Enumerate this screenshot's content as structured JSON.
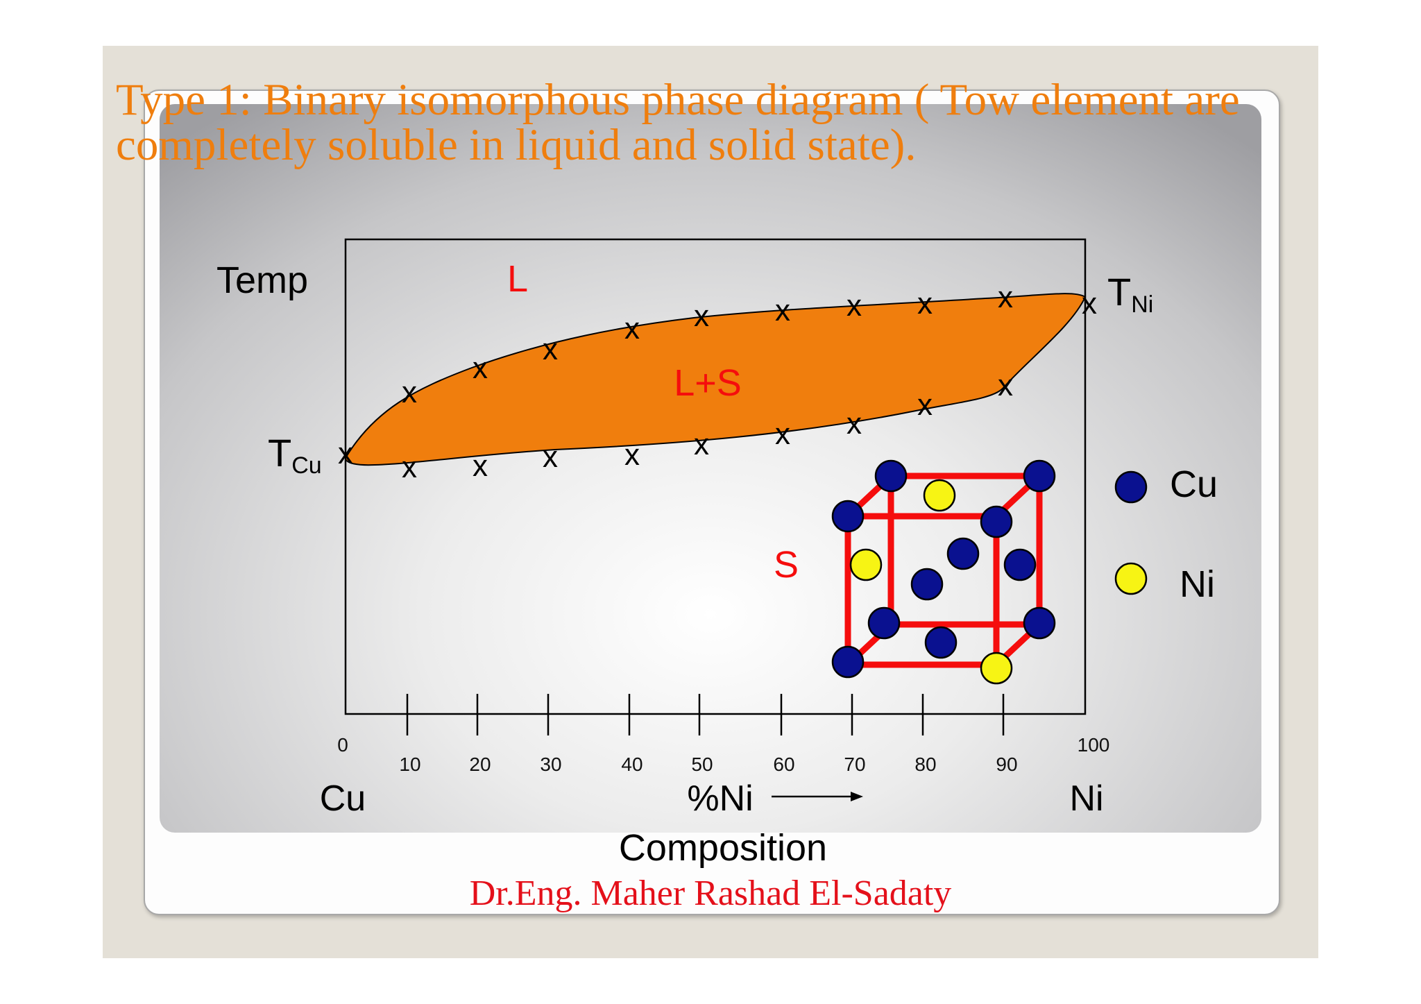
{
  "slide": {
    "title": "Type 1: Binary isomorphous phase diagram  ( Tow element are\ncompletely soluble in liquid and solid state).",
    "author": "Dr.Eng. Maher Rashad  El-Sadaty"
  },
  "diagram": {
    "y_axis_label": "Temp",
    "t_cu": {
      "main": "T",
      "sub": "Cu"
    },
    "t_ni": {
      "main": "T",
      "sub": "Ni"
    },
    "phase_labels": {
      "liquid": "L",
      "two_phase": "L+S",
      "solid": "S"
    },
    "x_ticks": [
      "0",
      "10",
      "20",
      "30",
      "40",
      "50",
      "60",
      "70",
      "80",
      "90",
      "100"
    ],
    "x_left_label": "Cu",
    "x_right_label": "Ni",
    "x_axis_label": "%Ni",
    "composition_label": "Composition",
    "legend": [
      {
        "label": "Cu",
        "color": "#0a1190"
      },
      {
        "label": "Ni",
        "color": "#f7f414"
      }
    ],
    "colors": {
      "two_phase_fill": "#f07e0d",
      "lattice_edges": "#f50d0d",
      "cu_atom": "#0a1190",
      "ni_atom": "#f7f414",
      "phase_text": "#f50d0d"
    }
  }
}
